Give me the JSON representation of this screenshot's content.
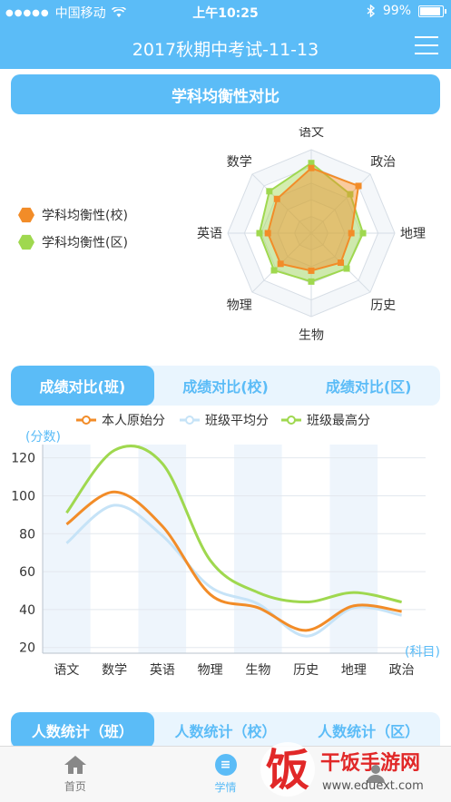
{
  "status": {
    "carrier": "中国移动",
    "time": "上午10:25",
    "battery": "99%",
    "battery_level": 0.99
  },
  "nav": {
    "title": "2017秋期中考试-11-13"
  },
  "balance": {
    "header": "学科均衡性对比",
    "legend": [
      {
        "label": "学科均衡性(校)",
        "color": "#f28c28"
      },
      {
        "label": "学科均衡性(区)",
        "color": "#9fd84f"
      }
    ]
  },
  "chart_data": [
    {
      "type": "radar",
      "axes": [
        "语文",
        "政治",
        "地理",
        "历史",
        "生物",
        "物理",
        "英语",
        "数学"
      ],
      "range": [
        0,
        1
      ],
      "series": [
        {
          "name": "学科均衡性(校)",
          "color": "#f28c28",
          "values": [
            0.78,
            0.8,
            0.48,
            0.5,
            0.45,
            0.52,
            0.52,
            0.58
          ]
        },
        {
          "name": "学科均衡性(区)",
          "color": "#9fd84f",
          "values": [
            0.84,
            0.66,
            0.62,
            0.6,
            0.58,
            0.63,
            0.62,
            0.71
          ]
        }
      ]
    },
    {
      "type": "line",
      "ylabel": "(分数)",
      "xlabel": "(科目)",
      "categories": [
        "语文",
        "数学",
        "英语",
        "物理",
        "生物",
        "历史",
        "地理",
        "政治"
      ],
      "yticks": [
        20,
        40,
        60,
        80,
        100,
        120
      ],
      "ylim": [
        17,
        127
      ],
      "legend_position": "top-center",
      "series": [
        {
          "name": "本人原始分",
          "color": "#f28c28",
          "values": [
            85,
            102,
            84,
            48,
            41,
            29,
            42,
            39
          ]
        },
        {
          "name": "班级平均分",
          "color": "#c6e3f7",
          "values": [
            75,
            95,
            79,
            52,
            43,
            26,
            41,
            37
          ]
        },
        {
          "name": "班级最高分",
          "color": "#9fd84f",
          "values": [
            91,
            124,
            117,
            66,
            49,
            44,
            49,
            44
          ]
        }
      ]
    }
  ],
  "score_tabs": [
    {
      "label": "成绩对比(班)",
      "active": true
    },
    {
      "label": "成绩对比(校)",
      "active": false
    },
    {
      "label": "成绩对比(区)",
      "active": false
    }
  ],
  "count_tabs": [
    {
      "label": "人数统计（班）",
      "active": true
    },
    {
      "label": "人数统计（校）",
      "active": false
    },
    {
      "label": "人数统计（区）",
      "active": false
    }
  ],
  "tabbar": [
    {
      "label": "首页",
      "icon": "home-icon",
      "active": false
    },
    {
      "label": "学情",
      "icon": "list-icon",
      "active": true
    },
    {
      "label": "",
      "icon": "profile-icon",
      "active": false
    }
  ],
  "watermark": {
    "name": "干饭手游网",
    "url": "www.eduext.com",
    "glyph": "饭"
  }
}
